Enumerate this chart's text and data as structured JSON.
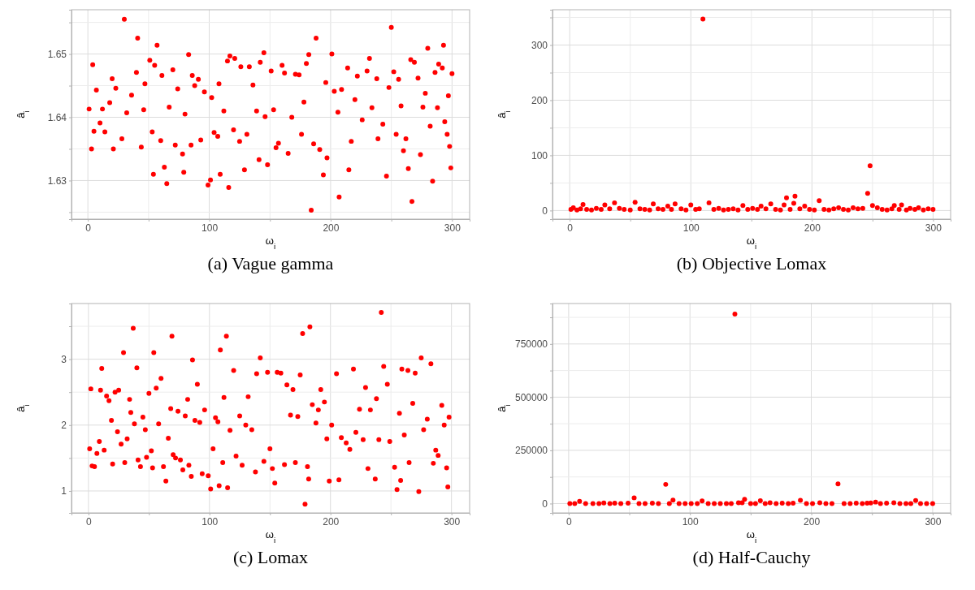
{
  "chart_data": [
    {
      "type": "scatter",
      "title": "(a) Vague gamma",
      "xlabel": "ω$_{i}$",
      "ylabel": "â$_{i}$",
      "color": "#ff0000",
      "marker": "circle",
      "grid": true,
      "xlim": [
        -13.5,
        314.5
      ],
      "ylim": [
        1.6239,
        1.657
      ],
      "xticks": [
        0,
        {
          "value": 50,
          "label": null
        },
        100,
        {
          "value": 150,
          "label": null
        },
        200,
        {
          "value": 250,
          "label": null
        },
        300
      ],
      "yticks": [
        {
          "value": 1.625,
          "label": null
        },
        1.63,
        {
          "value": 1.635,
          "label": null
        },
        1.64,
        {
          "value": 1.645,
          "label": null
        },
        1.65,
        {
          "value": 1.655,
          "label": null
        }
      ],
      "x": [
        1,
        3,
        4,
        5,
        7,
        10,
        12,
        14,
        18,
        20,
        21,
        23,
        28,
        30,
        32,
        36,
        40,
        41,
        44,
        46,
        47,
        51,
        53,
        54,
        55,
        57,
        60,
        61,
        63,
        65,
        67,
        70,
        72,
        74,
        78,
        79,
        80,
        83,
        85,
        86,
        88,
        91,
        93,
        96,
        99,
        101,
        102,
        104,
        107,
        108,
        109,
        112,
        115,
        116,
        117,
        120,
        121,
        125,
        126,
        129,
        131,
        133,
        136,
        139,
        141,
        142,
        145,
        146,
        148,
        151,
        153,
        155,
        157,
        160,
        162,
        165,
        168,
        171,
        174,
        176,
        178,
        180,
        182,
        184,
        186,
        188,
        191,
        194,
        196,
        197,
        201,
        203,
        206,
        207,
        209,
        214,
        215,
        217,
        220,
        222,
        226,
        230,
        232,
        234,
        238,
        239,
        243,
        246,
        248,
        250,
        252,
        254,
        256,
        258,
        260,
        262,
        264,
        266,
        267,
        269,
        272,
        274,
        276,
        278,
        280,
        282,
        284,
        286,
        288,
        289,
        292,
        293,
        294,
        296,
        297,
        298,
        299,
        300
      ],
      "values": [
        1.6413,
        1.635,
        1.6483,
        1.6378,
        1.6443,
        1.6391,
        1.6413,
        1.6377,
        1.6423,
        1.6461,
        1.635,
        1.6446,
        1.6366,
        1.6555,
        1.6407,
        1.6435,
        1.6471,
        1.6525,
        1.6353,
        1.6412,
        1.6453,
        1.649,
        1.6377,
        1.631,
        1.6482,
        1.6514,
        1.6363,
        1.6466,
        1.6321,
        1.6295,
        1.6416,
        1.6475,
        1.6356,
        1.6445,
        1.6342,
        1.6313,
        1.6405,
        1.6499,
        1.6356,
        1.6466,
        1.645,
        1.646,
        1.6364,
        1.644,
        1.6293,
        1.6301,
        1.6431,
        1.6376,
        1.637,
        1.6453,
        1.631,
        1.641,
        1.6489,
        1.6289,
        1.6497,
        1.638,
        1.6493,
        1.6362,
        1.648,
        1.6317,
        1.6373,
        1.648,
        1.6451,
        1.641,
        1.6333,
        1.6487,
        1.6502,
        1.6401,
        1.6325,
        1.6473,
        1.6412,
        1.6352,
        1.6359,
        1.6482,
        1.647,
        1.6343,
        1.64,
        1.6468,
        1.6467,
        1.6373,
        1.6424,
        1.6485,
        1.6499,
        1.6253,
        1.6358,
        1.6525,
        1.6349,
        1.6309,
        1.6455,
        1.6336,
        1.65,
        1.6441,
        1.6408,
        1.6274,
        1.6444,
        1.6478,
        1.6317,
        1.6362,
        1.6428,
        1.6465,
        1.6396,
        1.6473,
        1.6493,
        1.6415,
        1.6461,
        1.6366,
        1.6389,
        1.6307,
        1.6447,
        1.6542,
        1.6472,
        1.6373,
        1.646,
        1.6418,
        1.6347,
        1.6366,
        1.6319,
        1.6491,
        1.6267,
        1.6487,
        1.6462,
        1.6341,
        1.6416,
        1.6438,
        1.6509,
        1.6386,
        1.6299,
        1.6471,
        1.6415,
        1.6484,
        1.6478,
        1.6514,
        1.6393,
        1.6373,
        1.6434,
        1.6354,
        1.632,
        1.6469
      ]
    },
    {
      "type": "scatter",
      "title": "(b) Objective Lomax",
      "xlabel": "ω$_{i}$",
      "ylabel": "â$_{i}$",
      "color": "#ff0000",
      "marker": "circle",
      "grid": true,
      "xlim": [
        -14.2,
        314.5
      ],
      "ylim": [
        -15.6,
        364
      ],
      "xticks": [
        0,
        {
          "value": 50,
          "label": null
        },
        100,
        {
          "value": 150,
          "label": null
        },
        200,
        {
          "value": 250,
          "label": null
        },
        300
      ],
      "yticks": [
        0,
        {
          "value": 50,
          "label": null
        },
        100,
        {
          "value": 150,
          "label": null
        },
        200,
        {
          "value": 250,
          "label": null
        },
        300,
        {
          "value": 350,
          "label": null
        }
      ],
      "x": [
        1,
        3,
        6,
        9,
        11,
        14,
        18,
        22,
        26,
        29,
        33,
        37,
        41,
        45,
        50,
        54,
        58,
        62,
        66,
        69,
        73,
        77,
        81,
        84,
        87,
        92,
        96,
        100,
        104,
        107,
        110,
        115,
        119,
        123,
        127,
        131,
        135,
        139,
        143,
        147,
        151,
        155,
        158,
        162,
        166,
        170,
        174,
        177,
        179,
        182,
        185,
        186,
        190,
        194,
        198,
        202,
        206,
        210,
        214,
        218,
        222,
        226,
        230,
        234,
        238,
        242,
        246,
        248,
        250,
        254,
        258,
        262,
        266,
        268,
        272,
        274,
        278,
        281,
        285,
        288,
        292,
        296,
        300
      ],
      "values": [
        2,
        5,
        1,
        3,
        11,
        2,
        1,
        4,
        2,
        10,
        3,
        14,
        4,
        2,
        1,
        15,
        3,
        2,
        1,
        12,
        3,
        2,
        8,
        2,
        12,
        3,
        1,
        10,
        2,
        3,
        347,
        14,
        2,
        4,
        1,
        2,
        3,
        1,
        9,
        2,
        4,
        2,
        8,
        3,
        12,
        2,
        1,
        10,
        23,
        2,
        13,
        26,
        3,
        8,
        2,
        1,
        18,
        2,
        1,
        3,
        5,
        2,
        1,
        5,
        3,
        4,
        31,
        81,
        9,
        5,
        2,
        1,
        3,
        9,
        2,
        10,
        1,
        4,
        2,
        5,
        1,
        3,
        2
      ]
    },
    {
      "type": "scatter",
      "title": "(c) Lomax",
      "xlabel": "ω$_{i}$",
      "ylabel": "â$_{i}$",
      "color": "#ff0000",
      "marker": "circle",
      "grid": true,
      "xlim": [
        -14,
        315
      ],
      "ylim": [
        0.667,
        3.845
      ],
      "xticks": [
        0,
        {
          "value": 50,
          "label": null
        },
        100,
        {
          "value": 150,
          "label": null
        },
        200,
        {
          "value": 250,
          "label": null
        },
        300
      ],
      "yticks": [
        1,
        {
          "value": 1.5,
          "label": null
        },
        2,
        {
          "value": 2.5,
          "label": null
        },
        3,
        {
          "value": 3.5,
          "label": null
        }
      ],
      "x": [
        1,
        2,
        3,
        5,
        7,
        9,
        10,
        11,
        13,
        15,
        17,
        19,
        20,
        22,
        24,
        25,
        27,
        29,
        30,
        32,
        34,
        35,
        37,
        38,
        40,
        41,
        43,
        45,
        47,
        48,
        50,
        52,
        53,
        54,
        56,
        58,
        60,
        62,
        64,
        66,
        68,
        69,
        70,
        72,
        74,
        76,
        78,
        80,
        82,
        83,
        85,
        86,
        88,
        90,
        92,
        94,
        96,
        99,
        101,
        103,
        105,
        107,
        108,
        109,
        111,
        112,
        114,
        115,
        117,
        120,
        122,
        125,
        127,
        130,
        132,
        135,
        138,
        139,
        142,
        145,
        148,
        150,
        152,
        154,
        156,
        159,
        162,
        164,
        167,
        169,
        171,
        173,
        175,
        177,
        179,
        181,
        182,
        183,
        185,
        188,
        190,
        192,
        195,
        197,
        199,
        201,
        205,
        207,
        209,
        213,
        216,
        219,
        221,
        224,
        227,
        229,
        231,
        233,
        237,
        238,
        240,
        242,
        244,
        247,
        249,
        253,
        255,
        257,
        258,
        259,
        261,
        264,
        265,
        268,
        270,
        273,
        275,
        277,
        280,
        283,
        285,
        287,
        289,
        292,
        294,
        296,
        297,
        298
      ],
      "values": [
        1.64,
        2.55,
        1.38,
        1.37,
        1.57,
        1.75,
        2.53,
        2.86,
        1.62,
        2.44,
        2.37,
        2.07,
        1.41,
        2.5,
        1.9,
        2.53,
        1.71,
        3.1,
        1.43,
        1.79,
        2.39,
        2.19,
        3.47,
        2.02,
        2.87,
        1.47,
        1.37,
        2.12,
        1.93,
        1.51,
        2.48,
        1.61,
        1.35,
        3.1,
        2.56,
        2.02,
        2.71,
        1.37,
        1.15,
        1.8,
        2.25,
        3.35,
        1.55,
        1.5,
        2.21,
        1.47,
        1.32,
        2.14,
        2.39,
        1.39,
        1.22,
        2.99,
        2.07,
        2.62,
        2.04,
        1.26,
        2.23,
        1.23,
        1.03,
        1.64,
        2.11,
        2.05,
        1.08,
        3.14,
        1.43,
        2.42,
        3.35,
        1.05,
        1.92,
        2.83,
        1.53,
        2.14,
        1.39,
        2.0,
        2.43,
        1.93,
        1.29,
        2.78,
        3.02,
        1.45,
        2.8,
        1.64,
        1.34,
        1.12,
        2.8,
        2.79,
        1.4,
        2.61,
        2.15,
        2.54,
        1.43,
        2.13,
        2.76,
        3.39,
        0.8,
        1.37,
        1.18,
        3.49,
        2.31,
        2.03,
        2.23,
        2.54,
        2.35,
        1.79,
        1.15,
        2.0,
        2.78,
        1.17,
        1.81,
        1.73,
        1.63,
        2.85,
        1.89,
        2.24,
        1.78,
        2.57,
        1.34,
        2.23,
        1.18,
        2.4,
        1.78,
        3.71,
        2.89,
        2.62,
        1.75,
        1.36,
        1.02,
        2.18,
        1.16,
        2.85,
        1.85,
        2.83,
        1.43,
        2.33,
        2.79,
        0.99,
        3.02,
        1.93,
        2.09,
        2.93,
        1.42,
        1.62,
        1.54,
        2.3,
        2.0,
        1.35,
        1.06,
        2.12
      ]
    },
    {
      "type": "scatter",
      "title": "(d) Half-Cauchy",
      "xlabel": "ω$_{i}$",
      "ylabel": "â$_{i}$",
      "color": "#ff0000",
      "marker": "circle",
      "grid": true,
      "xlim": [
        -13.3,
        314.8
      ],
      "ylim": [
        -44000,
        940000
      ],
      "xticks": [
        0,
        {
          "value": 50,
          "label": null
        },
        100,
        {
          "value": 150,
          "label": null
        },
        200,
        {
          "value": 250,
          "label": null
        },
        300
      ],
      "yticks": [
        0,
        {
          "value": 125000,
          "label": null
        },
        250000,
        {
          "value": 375000,
          "label": null
        },
        500000,
        {
          "value": 625000,
          "label": null
        },
        750000,
        {
          "value": 875000,
          "label": null
        }
      ],
      "x": [
        1,
        5,
        9,
        14,
        20,
        25,
        29,
        34,
        38,
        43,
        49,
        54,
        58,
        63,
        69,
        74,
        80,
        83,
        86,
        91,
        96,
        101,
        106,
        110,
        115,
        120,
        125,
        130,
        134,
        137,
        140,
        143,
        145,
        150,
        154,
        158,
        162,
        166,
        171,
        176,
        181,
        185,
        191,
        196,
        201,
        207,
        212,
        217,
        222,
        227,
        232,
        237,
        242,
        246,
        249,
        253,
        257,
        262,
        268,
        273,
        278,
        282,
        286,
        290,
        295,
        300
      ],
      "values": [
        0,
        0,
        10000,
        0,
        0,
        0,
        3000,
        0,
        2000,
        0,
        2000,
        27000,
        0,
        0,
        2000,
        0,
        90000,
        0,
        16000,
        0,
        0,
        0,
        0,
        12000,
        0,
        0,
        0,
        0,
        0,
        890000,
        4000,
        4000,
        20000,
        0,
        0,
        13000,
        0,
        4000,
        0,
        2000,
        0,
        2000,
        15000,
        0,
        0,
        4000,
        0,
        0,
        92000,
        0,
        0,
        2000,
        0,
        2000,
        3000,
        7000,
        0,
        2000,
        4000,
        0,
        0,
        0,
        14000,
        0,
        0,
        0
      ]
    }
  ]
}
